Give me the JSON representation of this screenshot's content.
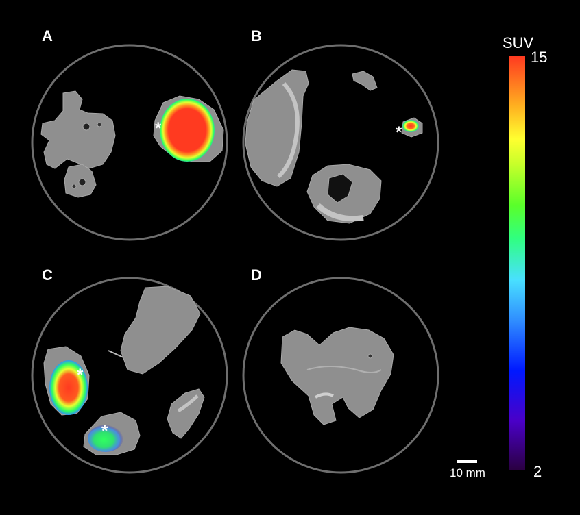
{
  "panels": [
    {
      "label": "A"
    },
    {
      "label": "B"
    },
    {
      "label": "C"
    },
    {
      "label": "D"
    }
  ],
  "markers": {
    "asterisk": "*"
  },
  "colorbar": {
    "title": "SUV",
    "max_label": "15",
    "min_label": "2",
    "stops": [
      "#2a0040",
      "#4a00c8",
      "#0018ff",
      "#2f8cff",
      "#49e0ff",
      "#30ff80",
      "#5aff2a",
      "#c8ff2a",
      "#ffff30",
      "#ffb020",
      "#ff6a20",
      "#ff3a20"
    ]
  },
  "scale_bar": {
    "label": "10 mm"
  }
}
